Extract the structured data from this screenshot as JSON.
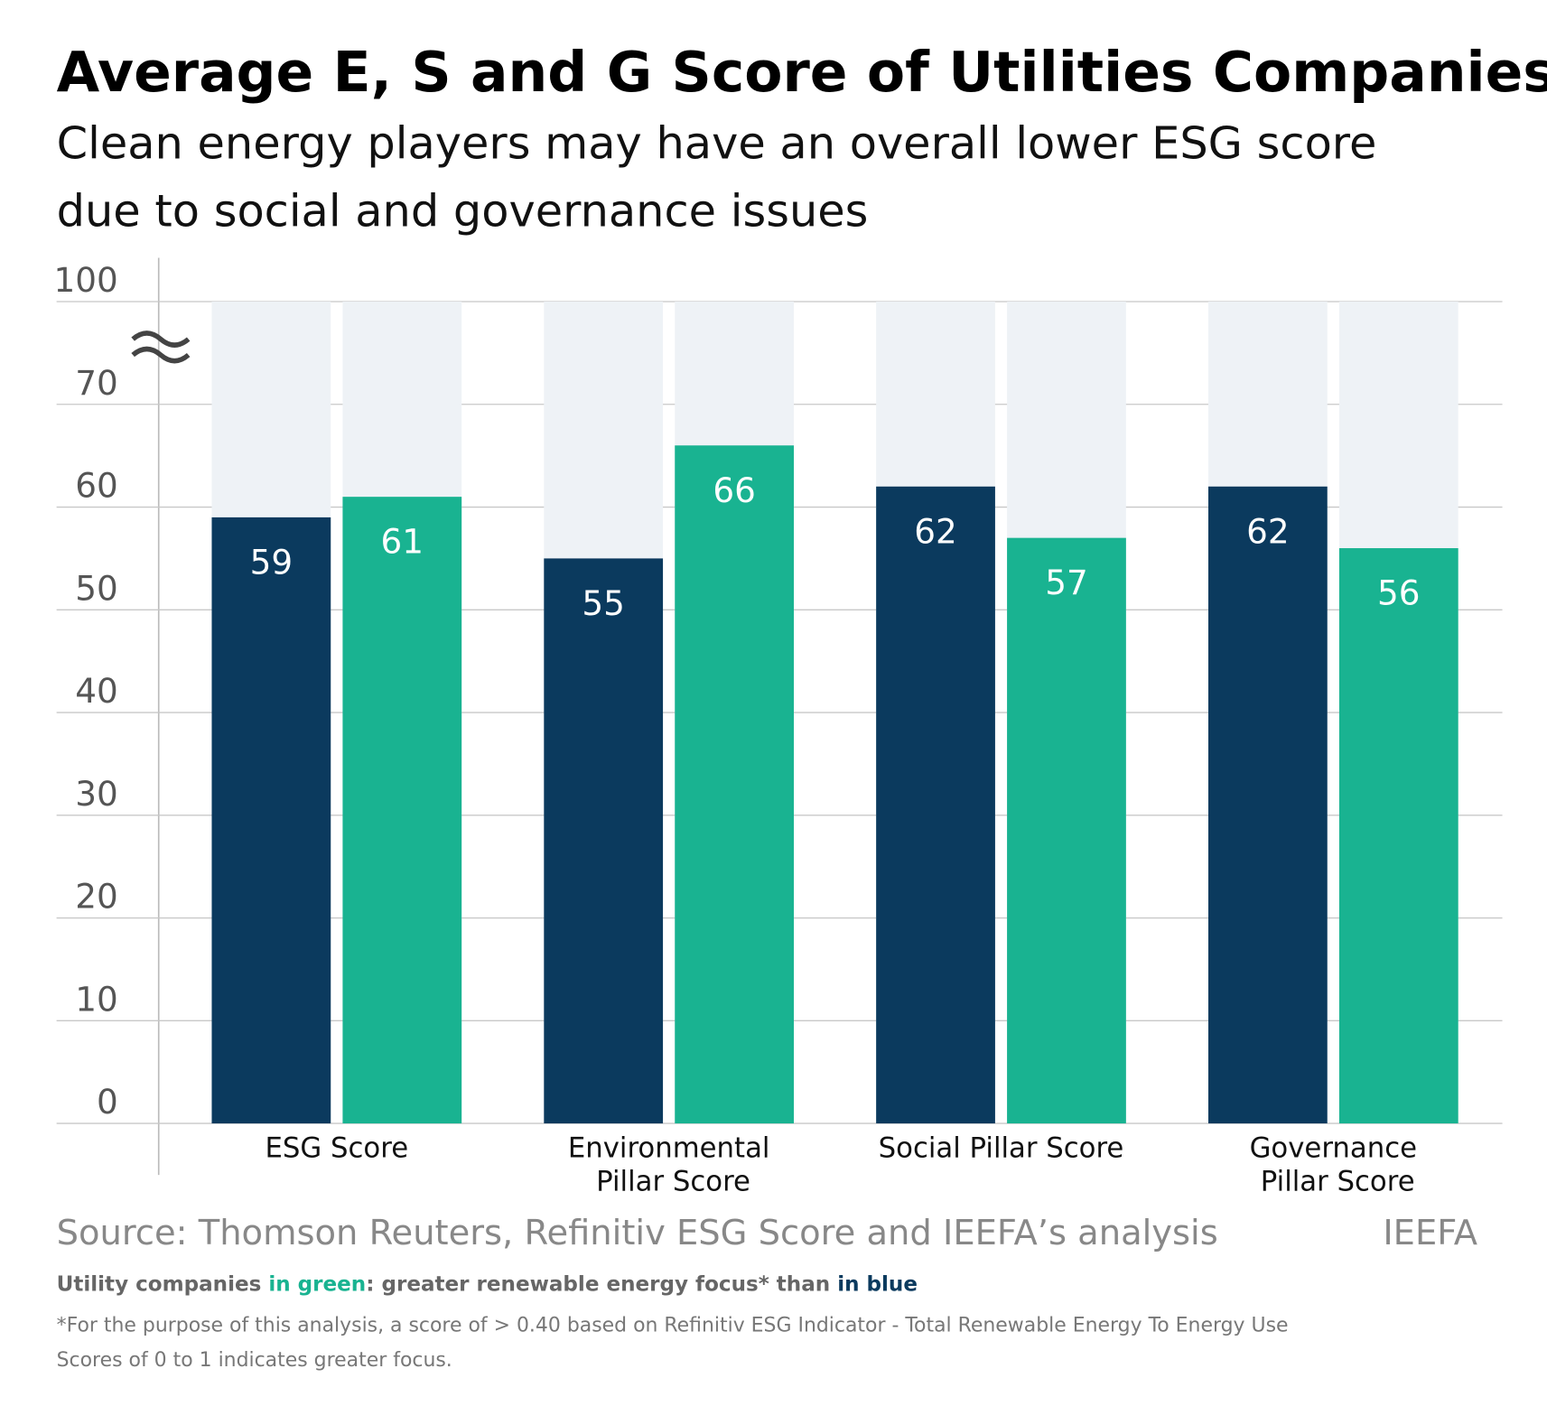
{
  "chart_data": {
    "type": "bar",
    "title": "Average E, S and G Score of Utilities Companies",
    "subtitle": [
      "Clean energy players may have an overall lower ESG score",
      "due to social and governance issues"
    ],
    "categories": [
      "ESG Score",
      "Environmental Pillar Score",
      "Social Pillar Score",
      "Governance Pillar Score"
    ],
    "series": [
      {
        "name": "in blue",
        "color": "#0b3a5e",
        "values": [
          59,
          55,
          62,
          62
        ]
      },
      {
        "name": "in green",
        "color": "#19b391",
        "values": [
          61,
          66,
          57,
          56
        ]
      }
    ],
    "ylim": [
      0,
      100
    ],
    "yticks": [
      0,
      10,
      20,
      30,
      40,
      50,
      60,
      70,
      100
    ],
    "grid": true,
    "source": "Source: Thomson Reuters, Refinitiv ESG Score and IEEFA’s analysis",
    "brand": "IEEFA",
    "legend_note": [
      "Utility companies ",
      ": greater renewable energy focus* than "
    ],
    "footnote": [
      "*For the purpose of this analysis, a score of > 0.40 based on Refinitiv ESG Indicator - Total Renewable Energy To Energy Use",
      "Scores of 0 to 1 indicates greater focus."
    ]
  }
}
